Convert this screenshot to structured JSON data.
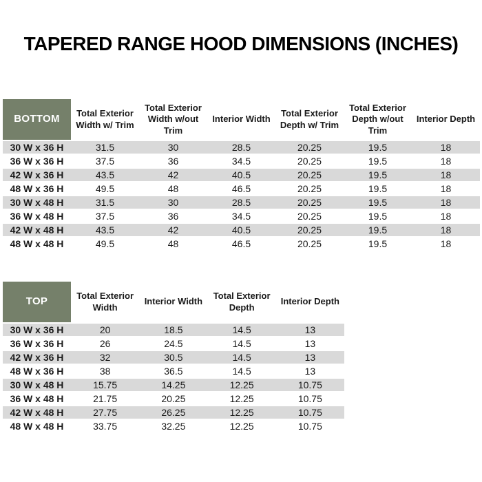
{
  "title": "TAPERED RANGE HOOD DIMENSIONS (INCHES)",
  "colors": {
    "header_green": "#75806a",
    "row_stripe_gray": "#d9d9d9",
    "background": "#ffffff",
    "text": "#1a1a1a"
  },
  "bottom_table": {
    "label": "BOTTOM",
    "columns": [
      "Total Exterior Width w/ Trim",
      "Total Exterior Width w/out Trim",
      "Interior Width",
      "Total Exterior Depth w/ Trim",
      "Total Exterior Depth w/out Trim",
      "Interior Depth"
    ],
    "rows": [
      {
        "size": "30 W x 36 H",
        "values": [
          "31.5",
          "30",
          "28.5",
          "20.25",
          "19.5",
          "18"
        ]
      },
      {
        "size": "36 W x 36 H",
        "values": [
          "37.5",
          "36",
          "34.5",
          "20.25",
          "19.5",
          "18"
        ]
      },
      {
        "size": "42 W x 36 H",
        "values": [
          "43.5",
          "42",
          "40.5",
          "20.25",
          "19.5",
          "18"
        ]
      },
      {
        "size": "48 W x 36 H",
        "values": [
          "49.5",
          "48",
          "46.5",
          "20.25",
          "19.5",
          "18"
        ]
      },
      {
        "size": "30 W x 48 H",
        "values": [
          "31.5",
          "30",
          "28.5",
          "20.25",
          "19.5",
          "18"
        ]
      },
      {
        "size": "36 W x 48 H",
        "values": [
          "37.5",
          "36",
          "34.5",
          "20.25",
          "19.5",
          "18"
        ]
      },
      {
        "size": "42 W x 48 H",
        "values": [
          "43.5",
          "42",
          "40.5",
          "20.25",
          "19.5",
          "18"
        ]
      },
      {
        "size": "48 W x 48 H",
        "values": [
          "49.5",
          "48",
          "46.5",
          "20.25",
          "19.5",
          "18"
        ]
      }
    ]
  },
  "top_table": {
    "label": "TOP",
    "columns": [
      "Total Exterior Width",
      "Interior Width",
      "Total Exterior Depth",
      "Interior Depth"
    ],
    "rows": [
      {
        "size": "30 W x 36 H",
        "values": [
          "20",
          "18.5",
          "14.5",
          "13"
        ]
      },
      {
        "size": "36 W x 36 H",
        "values": [
          "26",
          "24.5",
          "14.5",
          "13"
        ]
      },
      {
        "size": "42 W x 36 H",
        "values": [
          "32",
          "30.5",
          "14.5",
          "13"
        ]
      },
      {
        "size": "48 W x 36 H",
        "values": [
          "38",
          "36.5",
          "14.5",
          "13"
        ]
      },
      {
        "size": "30 W x 48 H",
        "values": [
          "15.75",
          "14.25",
          "12.25",
          "10.75"
        ]
      },
      {
        "size": "36 W x 48 H",
        "values": [
          "21.75",
          "20.25",
          "12.25",
          "10.75"
        ]
      },
      {
        "size": "42 W x 48 H",
        "values": [
          "27.75",
          "26.25",
          "12.25",
          "10.75"
        ]
      },
      {
        "size": "48 W x 48 H",
        "values": [
          "33.75",
          "32.25",
          "12.25",
          "10.75"
        ]
      }
    ]
  }
}
